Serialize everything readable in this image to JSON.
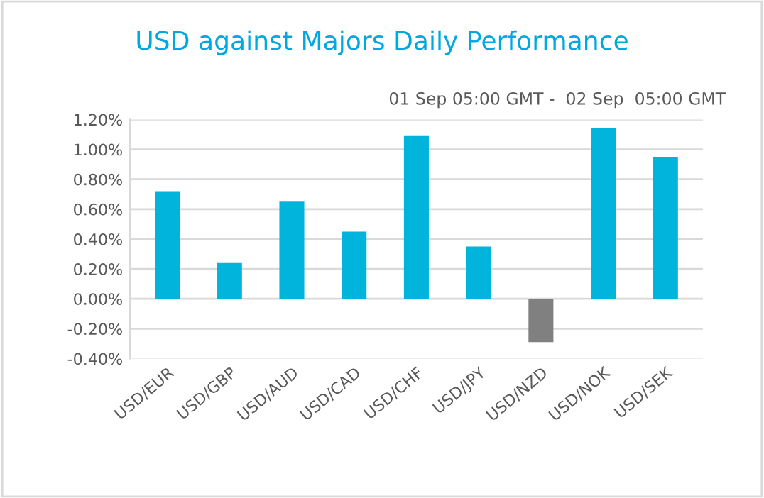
{
  "chart_data": {
    "type": "bar",
    "title": "USD against Majors Daily Performance",
    "subtitle": "01 Sep 05:00 GMT -  02 Sep  05:00 GMT",
    "categories": [
      "USD/EUR",
      "USD/GBP",
      "USD/AUD",
      "USD/CAD",
      "USD/CHF",
      "USD/JPY",
      "USD/NZD",
      "USD/NOK",
      "USD/SEK"
    ],
    "values": [
      0.72,
      0.24,
      0.65,
      0.45,
      1.09,
      0.35,
      -0.29,
      1.14,
      0.95
    ],
    "colors": [
      "#00b4dc",
      "#00b4dc",
      "#00b4dc",
      "#00b4dc",
      "#00b4dc",
      "#00b4dc",
      "#808080",
      "#00b4dc",
      "#00b4dc"
    ],
    "ylim": [
      -0.4,
      1.2
    ],
    "yticks": [
      {
        "value": -0.4,
        "label": "-0.40%"
      },
      {
        "value": -0.2,
        "label": "-0.20%"
      },
      {
        "value": 0,
        "label": "0.00%"
      },
      {
        "value": 0.2,
        "label": "0.20%"
      },
      {
        "value": 0.4,
        "label": "0.40%"
      },
      {
        "value": 0.6,
        "label": "0.60%"
      },
      {
        "value": 0.8,
        "label": "0.80%"
      },
      {
        "value": 1.0,
        "label": "1.00%"
      },
      {
        "value": 1.2,
        "label": "1.20%"
      }
    ],
    "grid": "y"
  }
}
